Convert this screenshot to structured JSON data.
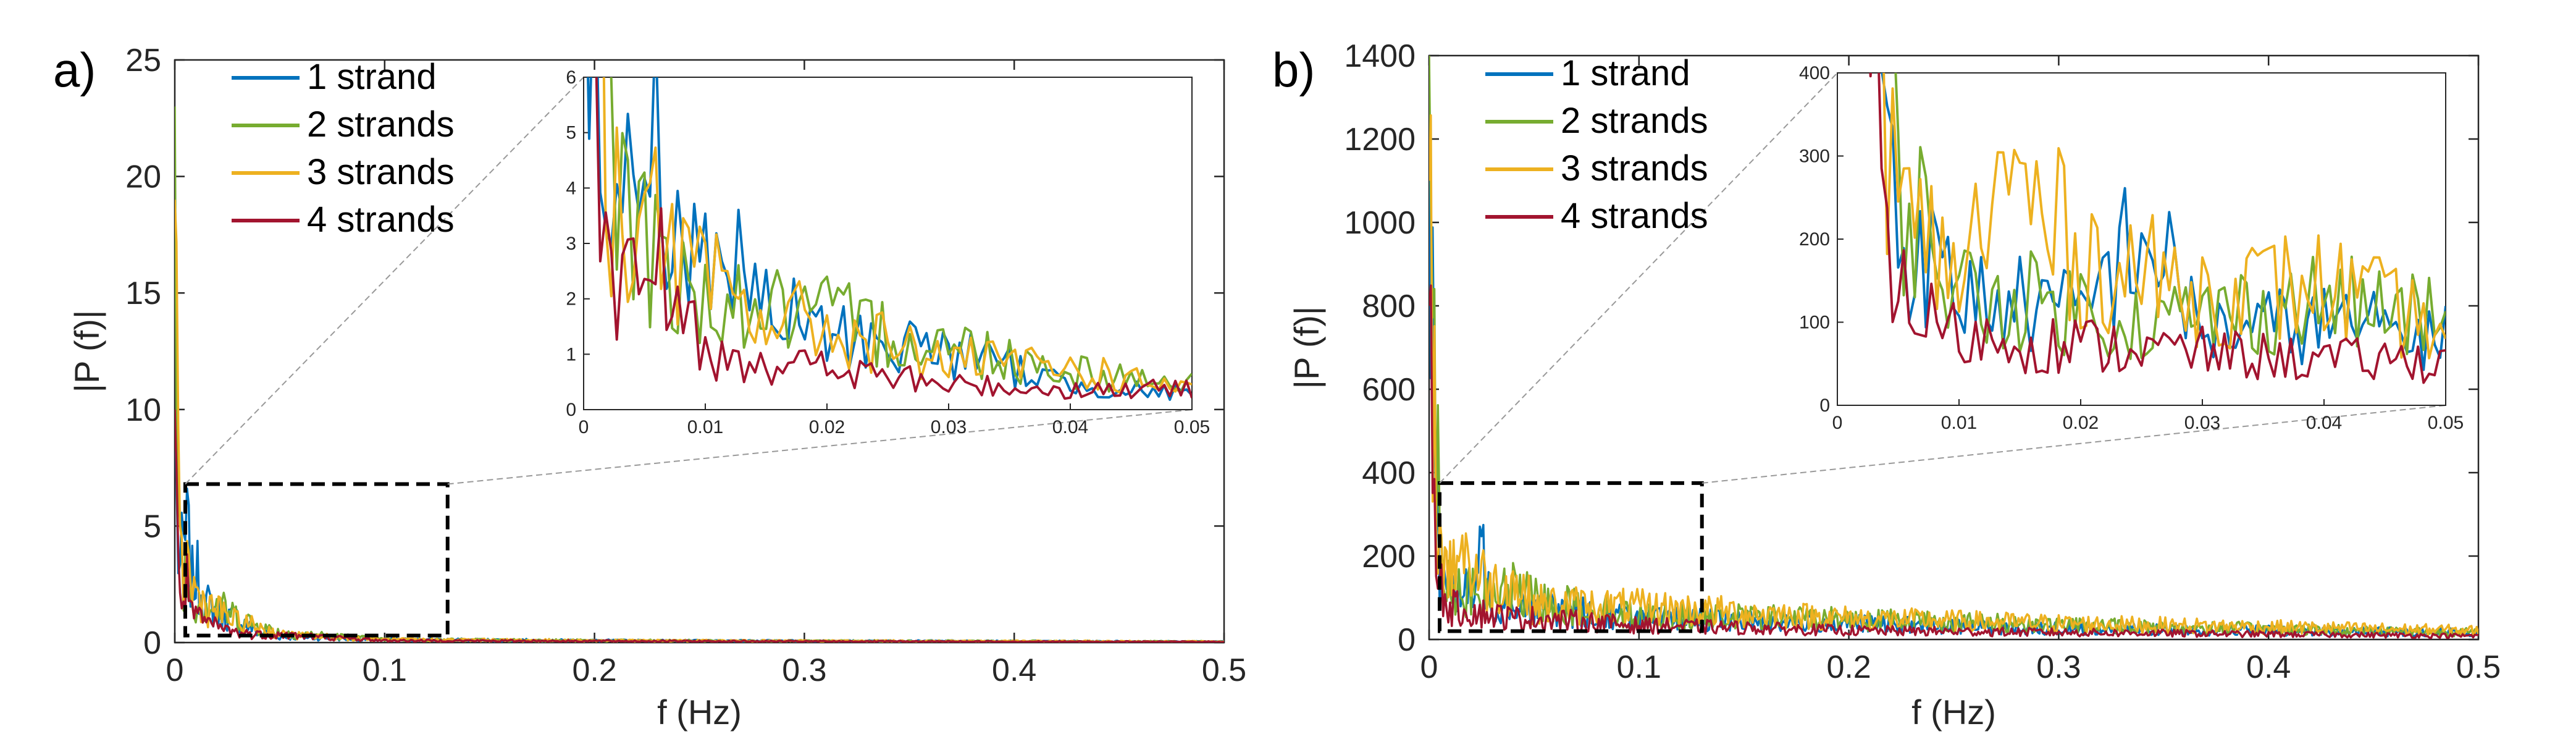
{
  "chart_data": [
    {
      "panel_label": "a)",
      "type": "line",
      "xlabel": "f (Hz)",
      "ylabel": "|P (f)|",
      "xlim": [
        0,
        0.5
      ],
      "ylim": [
        0,
        25
      ],
      "xticks": [
        "0",
        "0.1",
        "0.2",
        "0.3",
        "0.4",
        "0.5"
      ],
      "yticks": [
        "0",
        "5",
        "10",
        "15",
        "20",
        "25"
      ],
      "legend": [
        "1 strand",
        "2 strands",
        "3 strands",
        "4 strands"
      ],
      "colors": [
        "#0072BD",
        "#77AC30",
        "#EDB120",
        "#A2142F"
      ],
      "series": [
        {
          "name": "1 strand",
          "x": [
            0,
            0.002,
            0.004,
            0.006,
            0.008,
            0.01,
            0.015,
            0.02,
            0.03,
            0.04,
            0.05,
            0.1,
            0.2,
            0.3,
            0.4,
            0.5
          ],
          "values": [
            10,
            3.5,
            4.5,
            5.5,
            3.0,
            3.5,
            2.0,
            1.5,
            1.2,
            0.5,
            0.3,
            0.15,
            0.1,
            0.08,
            0.07,
            0.05
          ]
        },
        {
          "name": "2 strands",
          "x": [
            0,
            0.002,
            0.004,
            0.006,
            0.008,
            0.01,
            0.015,
            0.02,
            0.03,
            0.04,
            0.05,
            0.1,
            0.2,
            0.3,
            0.4,
            0.5
          ],
          "values": [
            23,
            5.8,
            4.0,
            3.0,
            2.5,
            2.2,
            2.0,
            1.8,
            1.3,
            0.8,
            0.5,
            0.15,
            0.1,
            0.08,
            0.07,
            0.05
          ]
        },
        {
          "name": "3 strands",
          "x": [
            0,
            0.002,
            0.004,
            0.006,
            0.008,
            0.01,
            0.015,
            0.02,
            0.03,
            0.04,
            0.05,
            0.1,
            0.2,
            0.3,
            0.4,
            0.5
          ],
          "values": [
            19,
            4.5,
            3.5,
            4.0,
            2.8,
            2.5,
            1.9,
            1.6,
            1.0,
            0.8,
            0.4,
            0.15,
            0.1,
            0.08,
            0.07,
            0.05
          ]
        },
        {
          "name": "4 strands",
          "x": [
            0,
            0.002,
            0.004,
            0.006,
            0.008,
            0.01,
            0.015,
            0.02,
            0.03,
            0.04,
            0.05,
            0.1,
            0.2,
            0.3,
            0.4,
            0.5
          ],
          "values": [
            10,
            2.2,
            2.5,
            3.0,
            1.8,
            1.2,
            1.0,
            0.8,
            0.5,
            0.4,
            0.4,
            0.1,
            0.08,
            0.06,
            0.05,
            0.04
          ]
        }
      ],
      "zoom_box": {
        "x": [
          0.005,
          0.13
        ],
        "y": [
          0.3,
          6.8
        ]
      },
      "inset": {
        "xlim": [
          0,
          0.05
        ],
        "ylim": [
          0,
          6
        ],
        "xticks": [
          "0",
          "0.01",
          "0.02",
          "0.03",
          "0.04",
          "0.05"
        ],
        "yticks": [
          "0",
          "1",
          "2",
          "3",
          "4",
          "5",
          "6"
        ]
      }
    },
    {
      "panel_label": "b)",
      "type": "line",
      "xlabel": "f (Hz)",
      "ylabel": "|P (f)|",
      "xlim": [
        0,
        0.5
      ],
      "ylim": [
        0,
        1400
      ],
      "xticks": [
        "0",
        "0.1",
        "0.2",
        "0.3",
        "0.4",
        "0.5"
      ],
      "yticks": [
        "0",
        "200",
        "400",
        "600",
        "800",
        "1000",
        "1200",
        "1400"
      ],
      "legend": [
        "1 strand",
        "2 strands",
        "3 strands",
        "4 strands"
      ],
      "colors": [
        "#0072BD",
        "#77AC30",
        "#EDB120",
        "#A2142F"
      ],
      "series": [
        {
          "name": "1 strand",
          "x": [
            0,
            0.005,
            0.01,
            0.02,
            0.025,
            0.03,
            0.04,
            0.05,
            0.1,
            0.2,
            0.3,
            0.4,
            0.5
          ],
          "values": [
            1250,
            230,
            150,
            120,
            240,
            100,
            110,
            90,
            60,
            45,
            30,
            25,
            20
          ]
        },
        {
          "name": "2 strands",
          "x": [
            0,
            0.005,
            0.01,
            0.02,
            0.025,
            0.03,
            0.04,
            0.05,
            0.1,
            0.2,
            0.3,
            0.4,
            0.5
          ],
          "values": [
            1400,
            300,
            150,
            130,
            110,
            120,
            140,
            110,
            65,
            60,
            40,
            30,
            20
          ]
        },
        {
          "name": "3 strands",
          "x": [
            0,
            0.005,
            0.01,
            0.014,
            0.02,
            0.03,
            0.04,
            0.05,
            0.1,
            0.2,
            0.3,
            0.4,
            0.5
          ],
          "values": [
            1100,
            250,
            180,
            300,
            200,
            150,
            160,
            100,
            90,
            60,
            45,
            35,
            25
          ]
        },
        {
          "name": "4 strands",
          "x": [
            0,
            0.005,
            0.01,
            0.02,
            0.03,
            0.04,
            0.05,
            0.1,
            0.2,
            0.3,
            0.4,
            0.5
          ],
          "values": [
            800,
            150,
            90,
            80,
            70,
            60,
            60,
            40,
            25,
            20,
            15,
            10
          ]
        }
      ],
      "zoom_box": {
        "x": [
          0.005,
          0.13
        ],
        "y": [
          20,
          375
        ]
      },
      "inset": {
        "xlim": [
          0,
          0.05
        ],
        "ylim": [
          0,
          400
        ],
        "xticks": [
          "0",
          "0.01",
          "0.02",
          "0.03",
          "0.04",
          "0.05"
        ],
        "yticks": [
          "0",
          "100",
          "200",
          "300",
          "400"
        ]
      }
    }
  ]
}
